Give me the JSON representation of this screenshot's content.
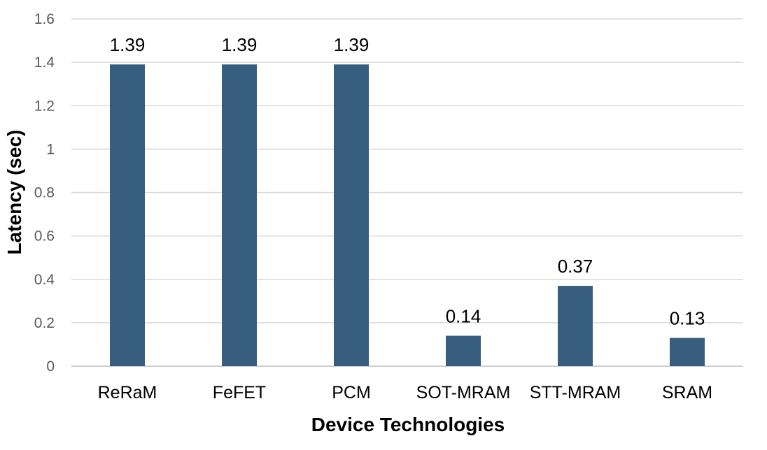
{
  "chart_data": {
    "type": "bar",
    "categories": [
      "ReRaM",
      "FeFET",
      "PCM",
      "SOT-MRAM",
      "STT-MRAM",
      "SRAM"
    ],
    "values": [
      1.39,
      1.39,
      1.39,
      0.14,
      0.37,
      0.13
    ],
    "data_labels": [
      "1.39",
      "1.39",
      "1.39",
      "0.14",
      "0.37",
      "0.13"
    ],
    "xlabel": "Device Technologies",
    "ylabel": "Latency (sec)",
    "ylim": [
      0,
      1.6
    ],
    "yticks": [
      "0",
      "0.2",
      "0.4",
      "0.6",
      "0.8",
      "1",
      "1.2",
      "1.4",
      "1.6"
    ],
    "grid": true,
    "legend": "none",
    "bar_color": "#375D7F"
  }
}
